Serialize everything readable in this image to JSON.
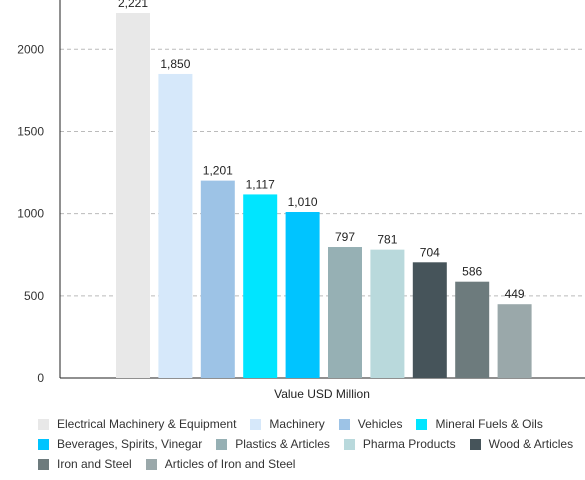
{
  "chart_data": {
    "type": "bar",
    "title": "",
    "xlabel": "Value USD Million",
    "ylabel": "",
    "ylim": [
      0,
      2300
    ],
    "yticks": [
      0,
      500,
      1000,
      1500,
      2000
    ],
    "grid": true,
    "legend_position": "bottom",
    "categories": [
      "Electrical Machinery & Equipment",
      "Machinery",
      "Vehicles",
      "Mineral Fuels & Oils",
      "Beverages, Spirits, Vinegar",
      "Plastics & Articles",
      "Pharma Products",
      "Wood & Articles",
      "Iron and Steel",
      "Articles of Iron and Steel"
    ],
    "values": [
      2221,
      1850,
      1201,
      1117,
      1010,
      797,
      781,
      704,
      586,
      449
    ],
    "data_labels": [
      "2,221",
      "1,850",
      "1,201",
      "1,117",
      "1,010",
      "797",
      "781",
      "704",
      "586",
      "449"
    ],
    "colors": [
      "#e8e8e8",
      "#d6e8fa",
      "#9dc3e6",
      "#00e5ff",
      "#00c4ff",
      "#96b0b4",
      "#b9d9dc",
      "#46545a",
      "#6d7b7d",
      "#9aa8aa"
    ]
  }
}
